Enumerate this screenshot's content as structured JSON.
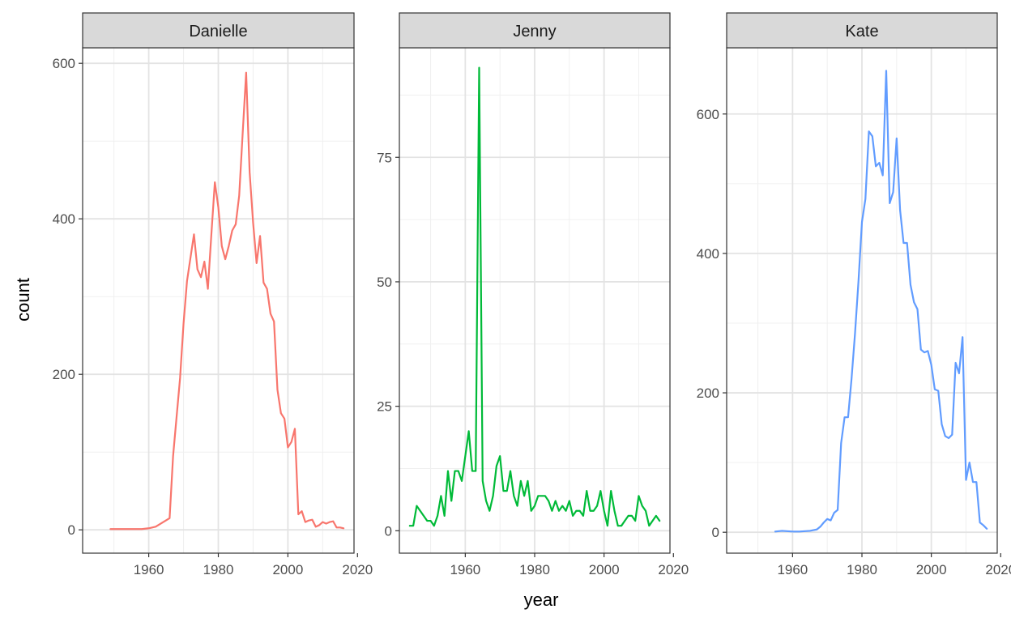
{
  "chart_data": {
    "type": "line",
    "facet_layout": "1 row x 3 columns, shared x axis, free y axes",
    "xlabel": "year",
    "ylabel": "count",
    "xlim": [
      1941,
      2019
    ],
    "x_ticks": [
      1960,
      1980,
      2000,
      2020
    ],
    "grid": true,
    "legend": "none",
    "panels": [
      {
        "name": "Danielle",
        "color": "#F8766D",
        "ylim": [
          -30,
          620
        ],
        "y_ticks": [
          0,
          200,
          400,
          600
        ],
        "x": [
          1949,
          1955,
          1958,
          1960,
          1961,
          1962,
          1966,
          1967,
          1968,
          1969,
          1970,
          1971,
          1972,
          1973,
          1974,
          1975,
          1976,
          1977,
          1978,
          1979,
          1980,
          1981,
          1982,
          1983,
          1984,
          1985,
          1986,
          1987,
          1988,
          1989,
          1990,
          1991,
          1992,
          1993,
          1994,
          1995,
          1996,
          1997,
          1998,
          1999,
          2000,
          2001,
          2002,
          2003,
          2004,
          2005,
          2006,
          2007,
          2008,
          2009,
          2010,
          2011,
          2012,
          2013,
          2014,
          2015,
          2016
        ],
        "values": [
          1,
          1,
          1,
          2,
          3,
          4,
          15,
          95,
          145,
          195,
          265,
          320,
          350,
          380,
          335,
          325,
          345,
          310,
          380,
          447,
          415,
          365,
          348,
          365,
          385,
          393,
          430,
          510,
          588,
          460,
          395,
          343,
          378,
          318,
          310,
          278,
          268,
          180,
          150,
          143,
          106,
          113,
          130,
          20,
          24,
          10,
          12,
          13,
          4,
          6,
          10,
          8,
          10,
          11,
          3,
          3,
          2
        ]
      },
      {
        "name": "Jenny",
        "color": "#00BA38",
        "ylim": [
          -4.5,
          97
        ],
        "y_ticks": [
          0,
          25,
          50,
          75
        ],
        "x": [
          1944,
          1945,
          1946,
          1947,
          1948,
          1949,
          1950,
          1951,
          1952,
          1953,
          1954,
          1955,
          1956,
          1957,
          1958,
          1959,
          1960,
          1961,
          1962,
          1963,
          1964,
          1965,
          1966,
          1967,
          1968,
          1969,
          1970,
          1971,
          1972,
          1973,
          1974,
          1975,
          1976,
          1977,
          1978,
          1979,
          1980,
          1981,
          1982,
          1983,
          1984,
          1985,
          1986,
          1987,
          1988,
          1989,
          1990,
          1991,
          1992,
          1993,
          1994,
          1995,
          1996,
          1997,
          1998,
          1999,
          2000,
          2001,
          2002,
          2003,
          2004,
          2005,
          2006,
          2007,
          2008,
          2009,
          2010,
          2011,
          2012,
          2013,
          2014,
          2015,
          2016
        ],
        "values": [
          1,
          1,
          5,
          4,
          3,
          2,
          2,
          1,
          3,
          7,
          3,
          12,
          6,
          12,
          12,
          10,
          15,
          20,
          12,
          12,
          93,
          10,
          6,
          4,
          7,
          13,
          15,
          8,
          8,
          12,
          7,
          5,
          10,
          7,
          10,
          4,
          5,
          7,
          7,
          7,
          6,
          4,
          6,
          4,
          5,
          4,
          6,
          3,
          4,
          4,
          3,
          8,
          4,
          4,
          5,
          8,
          4,
          1,
          8,
          4,
          1,
          1,
          2,
          3,
          3,
          2,
          7,
          5,
          4,
          1,
          2,
          3,
          2
        ]
      },
      {
        "name": "Kate",
        "color": "#619CFF",
        "ylim": [
          -30,
          695
        ],
        "y_ticks": [
          0,
          200,
          400,
          600
        ],
        "x": [
          1955,
          1957,
          1960,
          1962,
          1965,
          1967,
          1968,
          1969,
          1970,
          1971,
          1972,
          1973,
          1974,
          1975,
          1976,
          1977,
          1978,
          1979,
          1980,
          1981,
          1982,
          1983,
          1984,
          1985,
          1986,
          1987,
          1988,
          1989,
          1990,
          1991,
          1992,
          1993,
          1994,
          1995,
          1996,
          1997,
          1998,
          1999,
          2000,
          2001,
          2002,
          2003,
          2004,
          2005,
          2006,
          2007,
          2008,
          2009,
          2010,
          2011,
          2012,
          2013,
          2014,
          2015,
          2016
        ],
        "values": [
          1,
          2,
          1,
          1,
          2,
          4,
          8,
          14,
          19,
          17,
          28,
          32,
          128,
          165,
          165,
          220,
          285,
          360,
          445,
          478,
          575,
          568,
          525,
          530,
          512,
          662,
          472,
          488,
          565,
          462,
          415,
          415,
          355,
          330,
          320,
          262,
          258,
          260,
          240,
          205,
          203,
          155,
          138,
          135,
          140,
          243,
          228,
          280,
          75,
          100,
          72,
          72,
          14,
          10,
          5
        ]
      }
    ]
  }
}
